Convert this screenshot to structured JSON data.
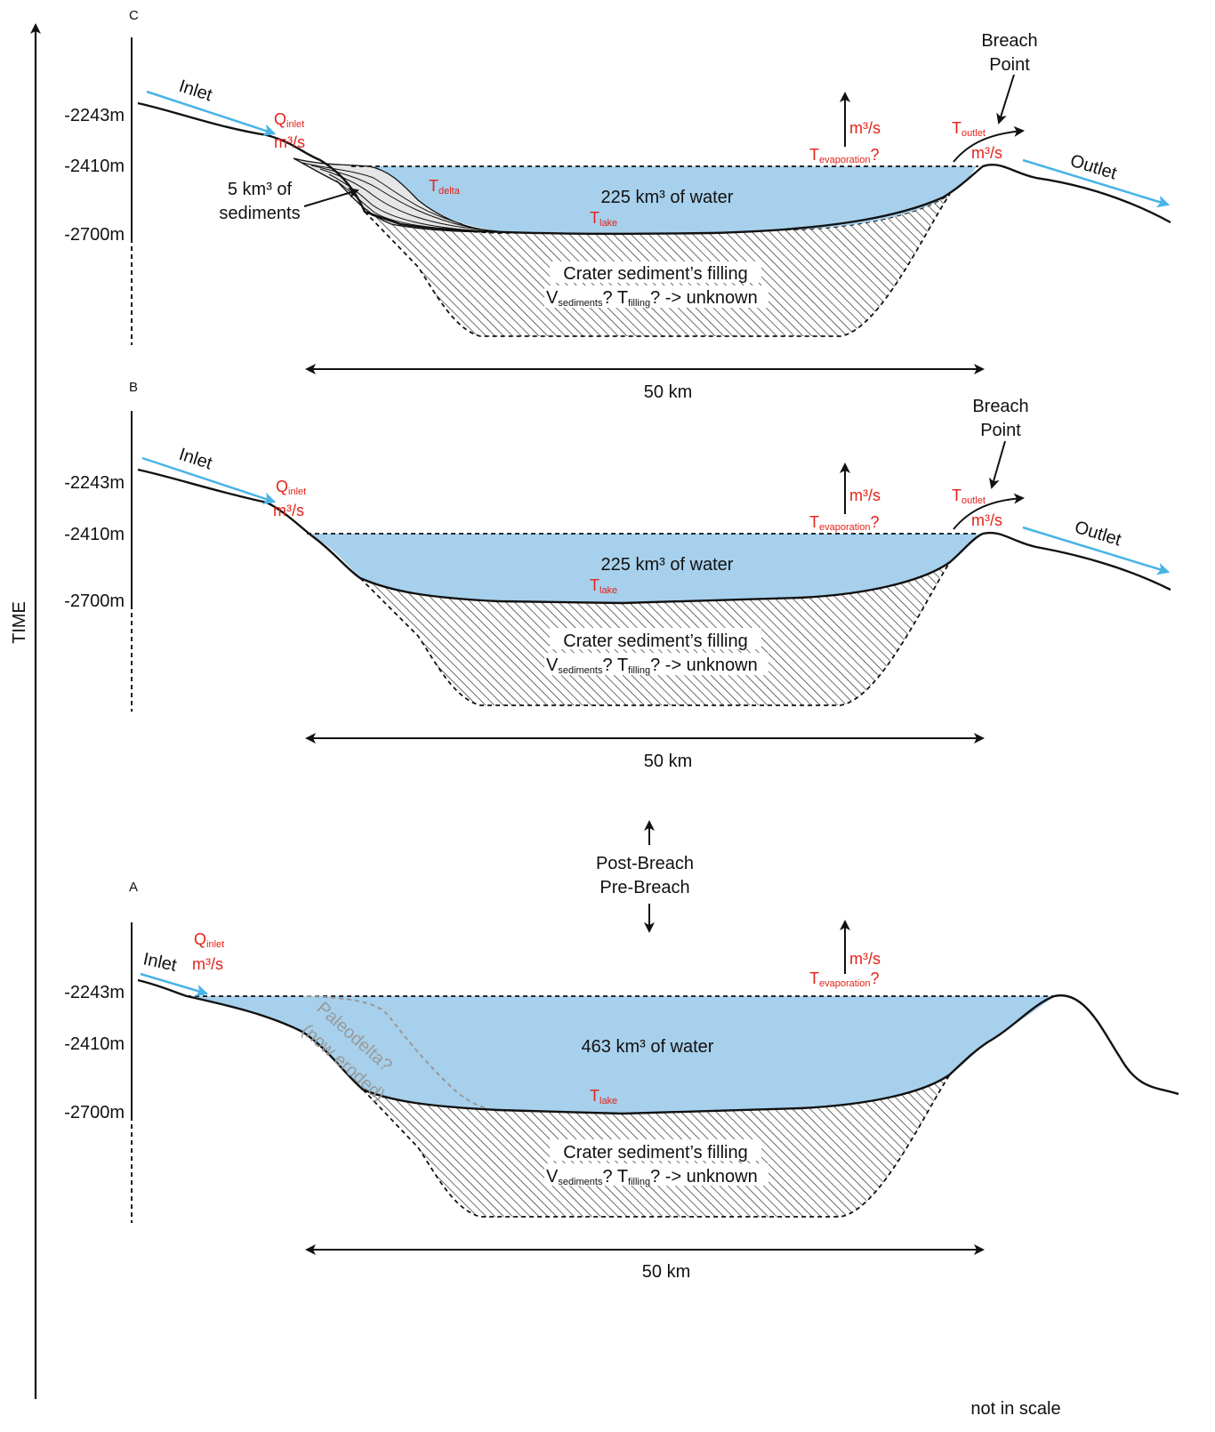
{
  "time_axis": {
    "label": "TIME"
  },
  "scale_note": "not in scale",
  "breach_divider": {
    "top": "Post-Breach",
    "bottom": "Pre-Breach"
  },
  "colors": {
    "water": "#a7d0ec",
    "arrow_blue": "#48b4e6",
    "red_text": "#e32219",
    "paleodelta": "#999999"
  },
  "panels": {
    "C": {
      "letter": "C",
      "levels": [
        "-2243m",
        "-2410m",
        "-2700m"
      ],
      "inlet": "Inlet",
      "q_inlet_main": "Q",
      "q_inlet_sub": "inlet",
      "q_units": "m³/s",
      "evap_units": "m³/s",
      "evap_main": "T",
      "evap_sub": "evaporation",
      "evap_q": "?",
      "outlet_main": "T",
      "outlet_sub": "outlet",
      "outlet_units": "m³/s",
      "breach_line1": "Breach",
      "breach_line2": "Point",
      "outlet": "Outlet",
      "water_text": "225 km³ of water",
      "lake_main": "T",
      "lake_sub": "lake",
      "delta_main": "T",
      "delta_sub": "delta",
      "sediments_line1": "5 km³ of",
      "sediments_line2": "sediments",
      "fill_line1": "Crater sediment’s filling",
      "fill_v": "V",
      "fill_v_sub": "sediments",
      "fill_q1": "?",
      "fill_t": "T",
      "fill_t_sub": "filling",
      "fill_q2": "? -> unknown",
      "width": "50 km"
    },
    "B": {
      "letter": "B",
      "levels": [
        "-2243m",
        "-2410m",
        "-2700m"
      ],
      "inlet": "Inlet",
      "q_inlet_main": "Q",
      "q_inlet_sub": "inlet",
      "q_units": "m³/s",
      "evap_units": "m³/s",
      "evap_main": "T",
      "evap_sub": "evaporation",
      "evap_q": "?",
      "outlet_main": "T",
      "outlet_sub": "outlet",
      "outlet_units": "m³/s",
      "breach_line1": "Breach",
      "breach_line2": "Point",
      "outlet": "Outlet",
      "water_text": "225 km³ of water",
      "lake_main": "T",
      "lake_sub": "lake",
      "fill_line1": "Crater sediment’s filling",
      "fill_v": "V",
      "fill_v_sub": "sediments",
      "fill_q1": "?",
      "fill_t": "T",
      "fill_t_sub": "filling",
      "fill_q2": "? -> unknown",
      "width": "50 km"
    },
    "A": {
      "letter": "A",
      "levels": [
        "-2243m",
        "-2410m",
        "-2700m"
      ],
      "inlet": "Inlet",
      "q_inlet_main": "Q",
      "q_inlet_sub": "inlet",
      "q_units": "m³/s",
      "evap_units": "m³/s",
      "evap_main": "T",
      "evap_sub": "evaporation",
      "evap_q": "?",
      "water_text": "463 km³ of water",
      "lake_main": "T",
      "lake_sub": "lake",
      "paleo_line1": "Paleodelta?",
      "paleo_line2": "(now eroded)",
      "fill_line1": "Crater sediment’s filling",
      "fill_v": "V",
      "fill_v_sub": "sediments",
      "fill_q1": "?",
      "fill_t": "T",
      "fill_t_sub": "filling",
      "fill_q2": "? -> unknown",
      "width": "50 km"
    }
  }
}
